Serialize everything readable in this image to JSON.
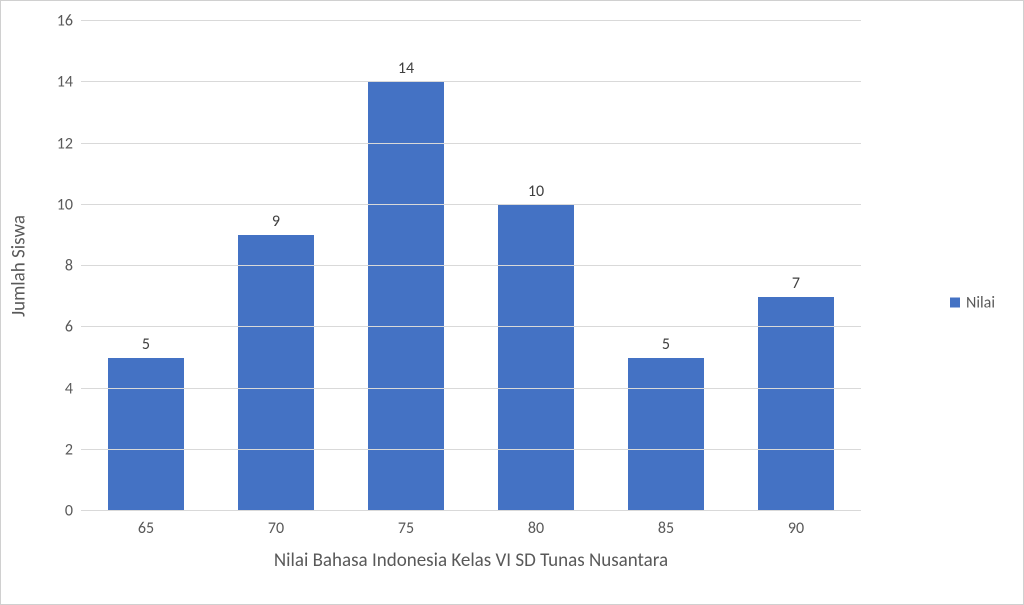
{
  "chart": {
    "type": "bar",
    "categories": [
      "65",
      "70",
      "75",
      "80",
      "85",
      "90"
    ],
    "values": [
      5,
      9,
      14,
      10,
      5,
      7
    ],
    "value_labels": [
      "5",
      "9",
      "14",
      "10",
      "5",
      "7"
    ],
    "bar_color": "#4472c4",
    "x_axis_title": "Nilai Bahasa Indonesia Kelas VI SD Tunas Nusantara",
    "y_axis_title": "Jumlah Siswa",
    "y_ticks": [
      0,
      2,
      4,
      6,
      8,
      10,
      12,
      14,
      16
    ],
    "y_tick_labels": [
      "0",
      "2",
      "4",
      "6",
      "8",
      "10",
      "12",
      "14",
      "16"
    ],
    "ylim": [
      0,
      16
    ],
    "grid_color": "#d9d9d9",
    "background_color": "#ffffff",
    "border_color": "#d0d0d0",
    "tick_label_fontsize": 16,
    "axis_title_fontsize": 19,
    "tick_label_color": "#595959",
    "axis_title_color": "#595959",
    "bar_width_ratio": 0.58
  },
  "legend": {
    "label": "Nilai",
    "swatch_color": "#4472c4",
    "label_color": "#595959",
    "label_fontsize": 16
  }
}
